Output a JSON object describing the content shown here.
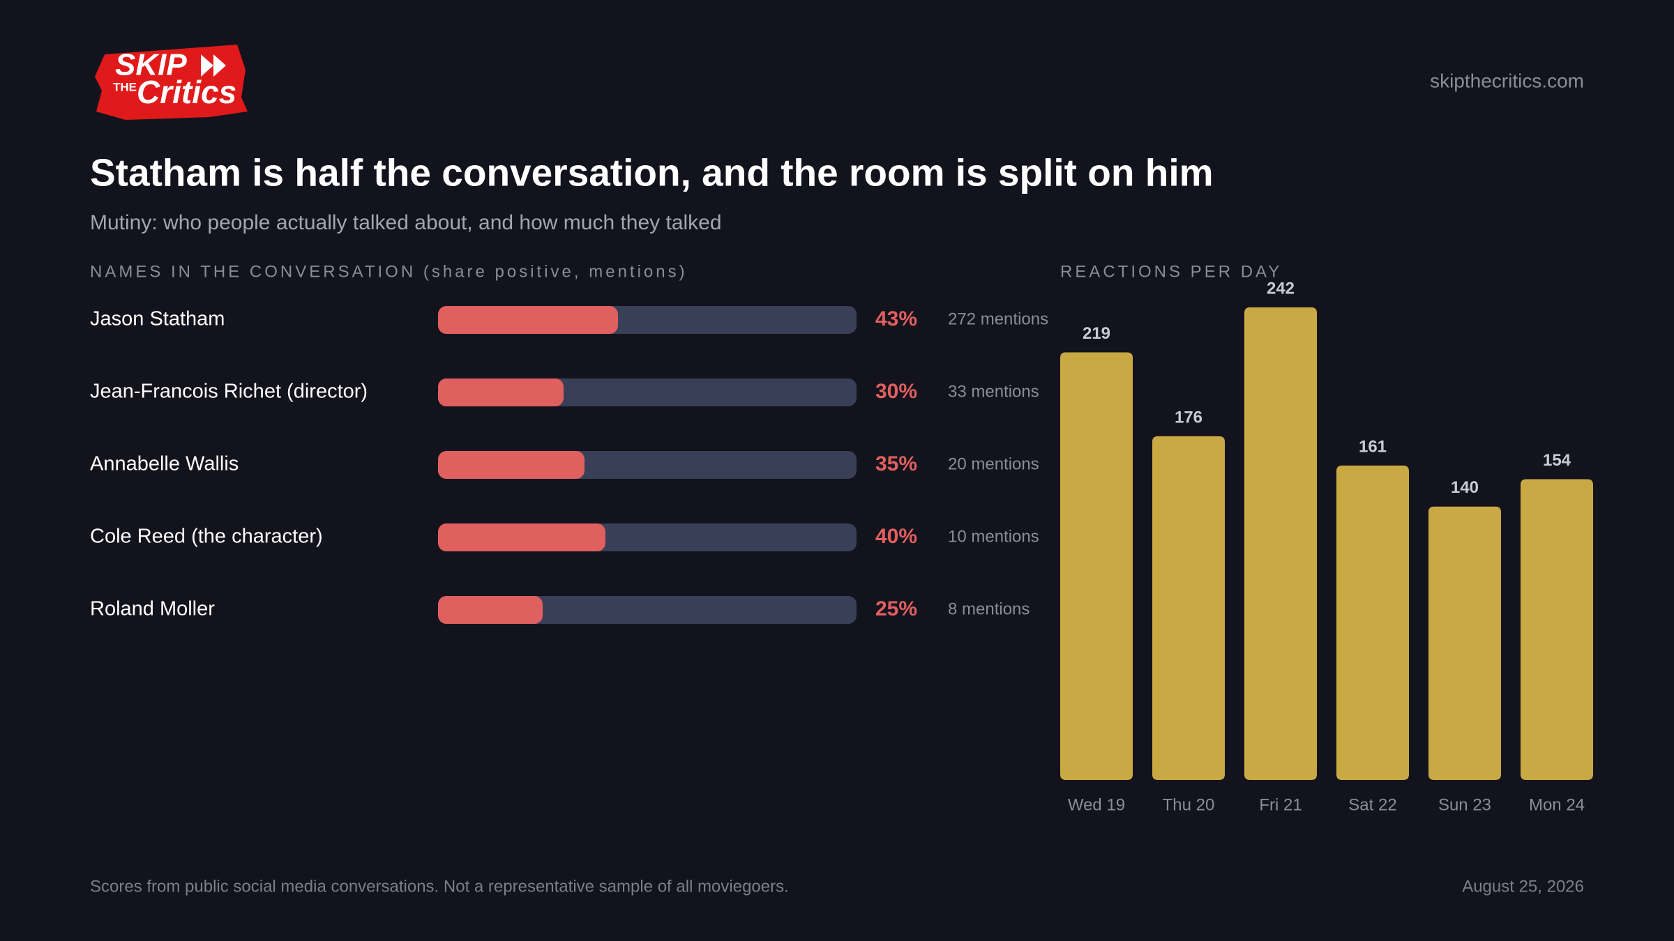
{
  "header": {
    "logo_top": "SKIP",
    "logo_small": "THE",
    "logo_bottom": "Critics",
    "site": "skipthecritics.com",
    "title": "Statham is half the conversation, and the room is split on him",
    "subtitle": "Mutiny: who people actually talked about, and how much they talked"
  },
  "chart_data": [
    {
      "type": "progress",
      "title": "NAMES IN THE CONVERSATION (share positive, mentions)",
      "categories": [
        "Jason Statham",
        "Jean-Francois Richet (director)",
        "Annabelle Wallis",
        "Cole Reed (the character)",
        "Roland Moller"
      ],
      "values": [
        43,
        30,
        35,
        40,
        25
      ],
      "value_labels": [
        "43%",
        "30%",
        "35%",
        "40%",
        "25%"
      ],
      "mentions": [
        272,
        33,
        20,
        10,
        8
      ],
      "mention_labels": [
        "272 mentions",
        "33 mentions",
        "20 mentions",
        "10 mentions",
        "8 mentions"
      ],
      "xlim": [
        0,
        100
      ],
      "color": "#e05f5f",
      "track_color": "#3a3f58"
    },
    {
      "type": "bar",
      "title": "REACTIONS PER DAY",
      "categories": [
        "Wed 19",
        "Thu 20",
        "Fri 21",
        "Sat 22",
        "Sun 23",
        "Mon 24"
      ],
      "values": [
        219,
        176,
        242,
        161,
        140,
        154
      ],
      "ylim": [
        0,
        242
      ],
      "color": "#c9a944"
    }
  ],
  "footer": {
    "note": "Scores from public social media conversations. Not a representative sample of all moviegoers.",
    "date": "August 25, 2026"
  }
}
